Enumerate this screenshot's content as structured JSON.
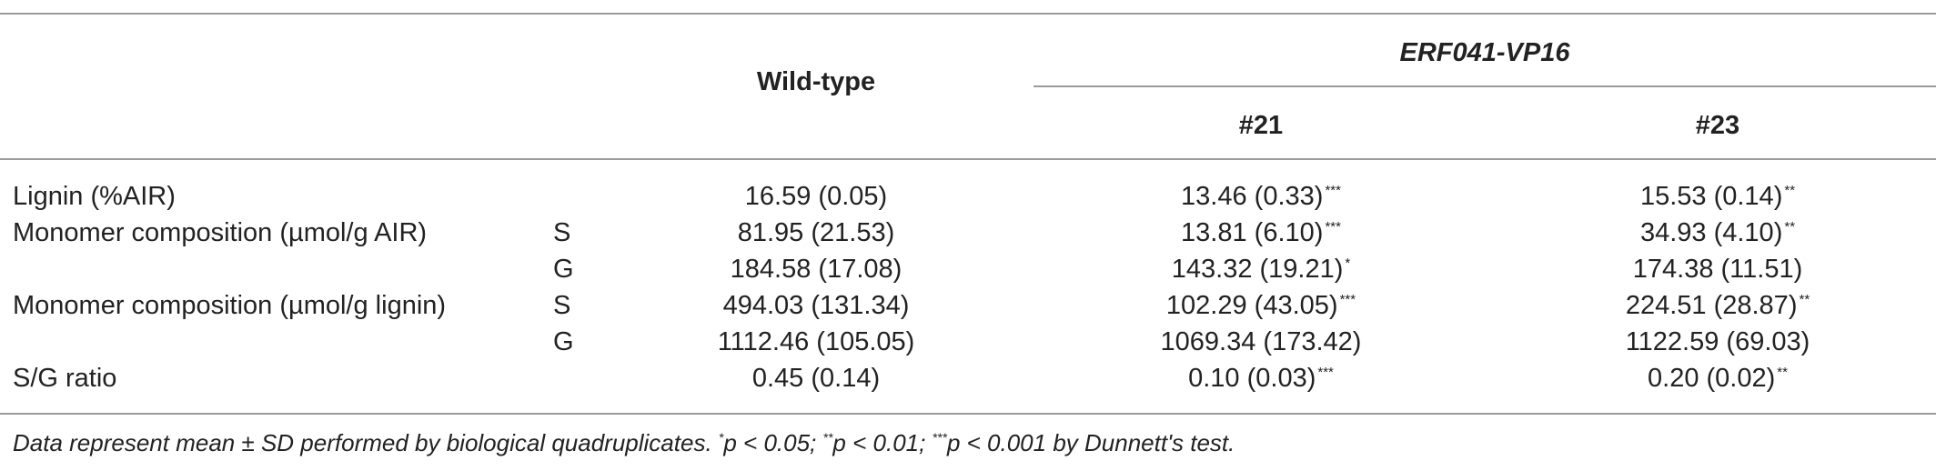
{
  "header": {
    "wildtype": "Wild-type",
    "group": "ERF041-VP16",
    "line21": "#21",
    "line23": "#23"
  },
  "rows": [
    {
      "label": "Lignin (%AIR)",
      "sub": "",
      "wt": "16.59 (0.05)",
      "l21": "13.46 (0.33)",
      "l21_sig": "***",
      "l23": "15.53 (0.14)",
      "l23_sig": "**"
    },
    {
      "label": "Monomer composition (µmol/g AIR)",
      "sub": "S",
      "wt": "81.95 (21.53)",
      "l21": "13.81 (6.10)",
      "l21_sig": "***",
      "l23": "34.93 (4.10)",
      "l23_sig": "**"
    },
    {
      "label": "",
      "sub": "G",
      "wt": "184.58 (17.08)",
      "l21": "143.32 (19.21)",
      "l21_sig": "*",
      "l23": "174.38 (11.51)",
      "l23_sig": ""
    },
    {
      "label": "Monomer composition (µmol/g lignin)",
      "sub": "S",
      "wt": "494.03 (131.34)",
      "l21": "102.29 (43.05)",
      "l21_sig": "***",
      "l23": "224.51 (28.87)",
      "l23_sig": "**"
    },
    {
      "label": "",
      "sub": "G",
      "wt": "1112.46 (105.05)",
      "l21": "1069.34 (173.42)",
      "l21_sig": "",
      "l23": "1122.59 (69.03)",
      "l23_sig": ""
    },
    {
      "label": "S/G ratio",
      "sub": "",
      "wt": "0.45 (0.14)",
      "l21": "0.10 (0.03)",
      "l21_sig": "***",
      "l23": "0.20 (0.02)",
      "l23_sig": "**"
    }
  ],
  "footnote": {
    "lead": "Data represent mean ± SD performed by biological quadruplicates. ",
    "sig1": "*",
    "t1": "p < 0.05; ",
    "sig2": "**",
    "t2": "p < 0.01; ",
    "sig3": "***",
    "t3": "p < 0.001 by Dunnett's test."
  }
}
